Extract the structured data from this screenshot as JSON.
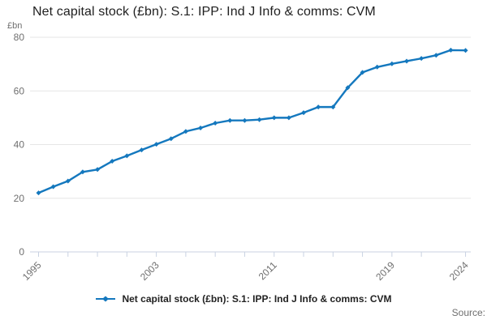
{
  "header": {
    "title": "Net capital stock (£bn): S.1: IPP: Ind J Info & comms: CVM",
    "unit_label": "£bn"
  },
  "chart_data": {
    "type": "line",
    "title": "Net capital stock (£bn): S.1: IPP: Ind J Info & comms: CVM",
    "xlabel": "",
    "ylabel": "£bn",
    "ylim": [
      0,
      80
    ],
    "y_ticks": [
      0,
      20,
      40,
      60,
      80
    ],
    "x": [
      1995,
      1996,
      1997,
      1998,
      1999,
      2000,
      2001,
      2002,
      2003,
      2004,
      2005,
      2006,
      2007,
      2008,
      2009,
      2010,
      2011,
      2012,
      2013,
      2014,
      2015,
      2016,
      2017,
      2018,
      2019,
      2020,
      2021,
      2022,
      2023,
      2024
    ],
    "series": [
      {
        "name": "Net capital stock (£bn): S.1: IPP: Ind J Info & comms: CVM",
        "values": [
          22.0,
          24.3,
          26.4,
          29.8,
          30.7,
          33.8,
          35.8,
          38.0,
          40.1,
          42.2,
          44.9,
          46.2,
          48.0,
          49.0,
          49.0,
          49.3,
          50.0,
          50.0,
          51.9,
          54.0,
          54.0,
          61.2,
          66.9,
          68.9,
          70.1,
          71.1,
          72.1,
          73.3,
          75.2,
          75.1
        ]
      }
    ],
    "x_tick_years": [
      1995,
      1997,
      1999,
      2001,
      2003,
      2005,
      2007,
      2009,
      2011,
      2013,
      2015,
      2017,
      2019,
      2021,
      2024
    ],
    "x_label_years": [
      1995,
      2003,
      2011,
      2019,
      2024
    ],
    "grid": "horizontal",
    "legend_position": "bottom",
    "marker": "diamond",
    "colors": {
      "line": "#1478be",
      "grid": "#e6e6e6",
      "axis": "#c9d2e2",
      "labels": "#6f6f6f"
    }
  },
  "legend": {
    "label": "Net capital stock (£bn): S.1: IPP: Ind J Info & comms: CVM"
  },
  "footer": {
    "source_label": "Source:"
  }
}
